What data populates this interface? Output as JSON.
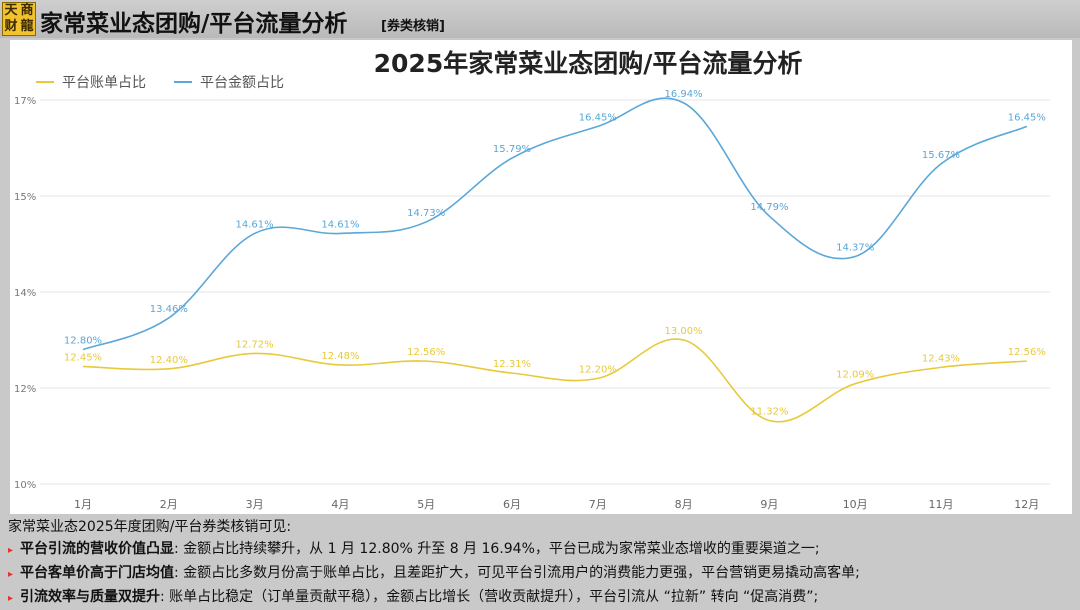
{
  "header": {
    "logo_chars": [
      "天",
      "商",
      "财",
      "龍"
    ],
    "title": "家常菜业态团购/平台流量分析",
    "tag": "[券类核销]"
  },
  "chart_data": {
    "type": "line",
    "title": "2025年家常菜业态团购/平台流量分析",
    "categories": [
      "1月",
      "2月",
      "3月",
      "4月",
      "5月",
      "6月",
      "7月",
      "8月",
      "9月",
      "10月",
      "11月",
      "12月"
    ],
    "y_ticks": [
      "17%",
      "15%",
      "14%",
      "12%",
      "10%"
    ],
    "legend_position": "top-left",
    "grid": true,
    "series": [
      {
        "name": "平台账单占比",
        "color": "#e8c93a",
        "values": [
          12.45,
          12.4,
          12.72,
          12.48,
          12.56,
          12.31,
          12.2,
          13.0,
          11.32,
          12.09,
          12.43,
          12.56
        ],
        "labels": [
          "12.45%",
          "12.40%",
          "12.72%",
          "12.48%",
          "12.56%",
          "12.31%",
          "12.20%",
          "13.00%",
          "11.32%",
          "12.09%",
          "12.43%",
          "12.56%"
        ]
      },
      {
        "name": "平台金额占比",
        "color": "#5aa7d8",
        "values": [
          12.8,
          13.46,
          14.61,
          14.61,
          14.73,
          15.79,
          16.45,
          16.94,
          14.79,
          14.37,
          15.67,
          16.45
        ],
        "labels": [
          "12.80%",
          "13.46%",
          "14.61%",
          "14.61%",
          "14.73%",
          "15.79%",
          "16.45%",
          "16.94%",
          "14.79%",
          "14.37%",
          "15.67%",
          "16.45%"
        ]
      }
    ]
  },
  "notes": {
    "intro": "家常菜业态2025年度团购/平台券类核销可见:",
    "items": [
      {
        "head": "平台引流的营收价值凸显",
        "body": ": 金额占比持续攀升，从 1 月 12.80% 升至 8 月 16.94%，平台已成为家常菜业态增收的重要渠道之一;"
      },
      {
        "head": "平台客单价高于门店均值",
        "body": ": 金额占比多数月份高于账单占比，且差距扩大，可见平台引流用户的消费能力更强，平台营销更易撬动高客单;"
      },
      {
        "head": "引流效率与质量双提升",
        "body": ": 账单占比稳定（订单量贡献平稳），金额占比增长（营收贡献提升），平台引流从 “拉新” 转向 “促高消费”;"
      }
    ]
  }
}
